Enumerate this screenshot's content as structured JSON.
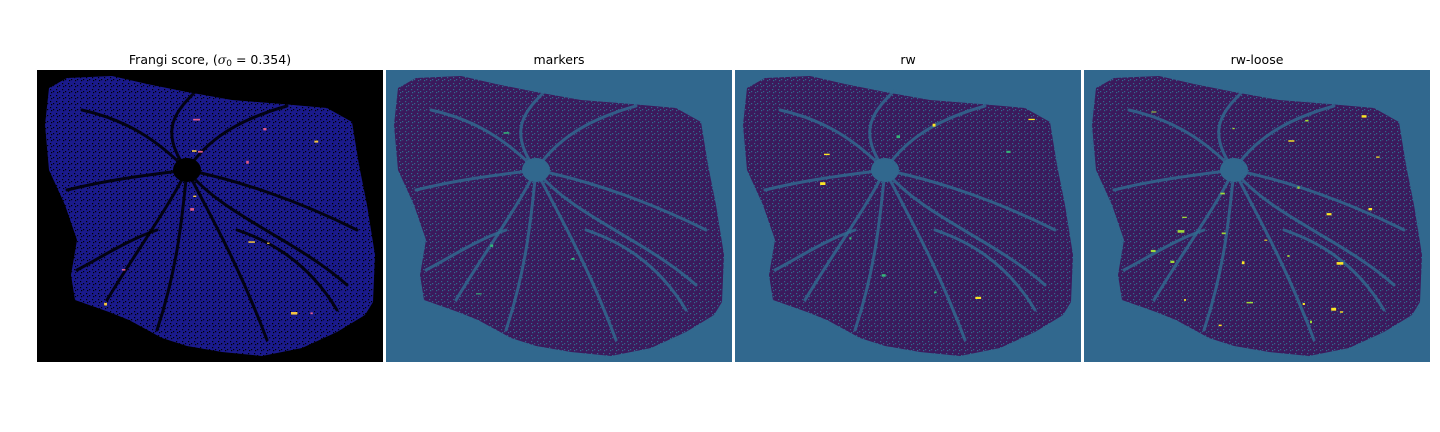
{
  "figure": {
    "panels": [
      {
        "key": "frangi",
        "title_prefix": "Frangi score, (",
        "title_sigma": "σ",
        "title_sub": "0",
        "title_eq": " = 0.354",
        "title_suffix": ")",
        "background": "#000000",
        "tissue_color": "#1a1a8c",
        "highlight_colors": [
          "#e05a8a",
          "#f5c542"
        ]
      },
      {
        "key": "markers",
        "title": "markers",
        "background": "#31688e",
        "tissue_color": "#3b1a5c",
        "highlight_colors": [
          "#35b779"
        ]
      },
      {
        "key": "rw",
        "title": "rw",
        "background": "#31688e",
        "tissue_color": "#3b1a5c",
        "highlight_colors": [
          "#35b779",
          "#fde725"
        ]
      },
      {
        "key": "rw-loose",
        "title": "rw-loose",
        "background": "#31688e",
        "tissue_color": "#3b1a5c",
        "highlight_colors": [
          "#a0da39",
          "#fde725"
        ]
      }
    ]
  }
}
